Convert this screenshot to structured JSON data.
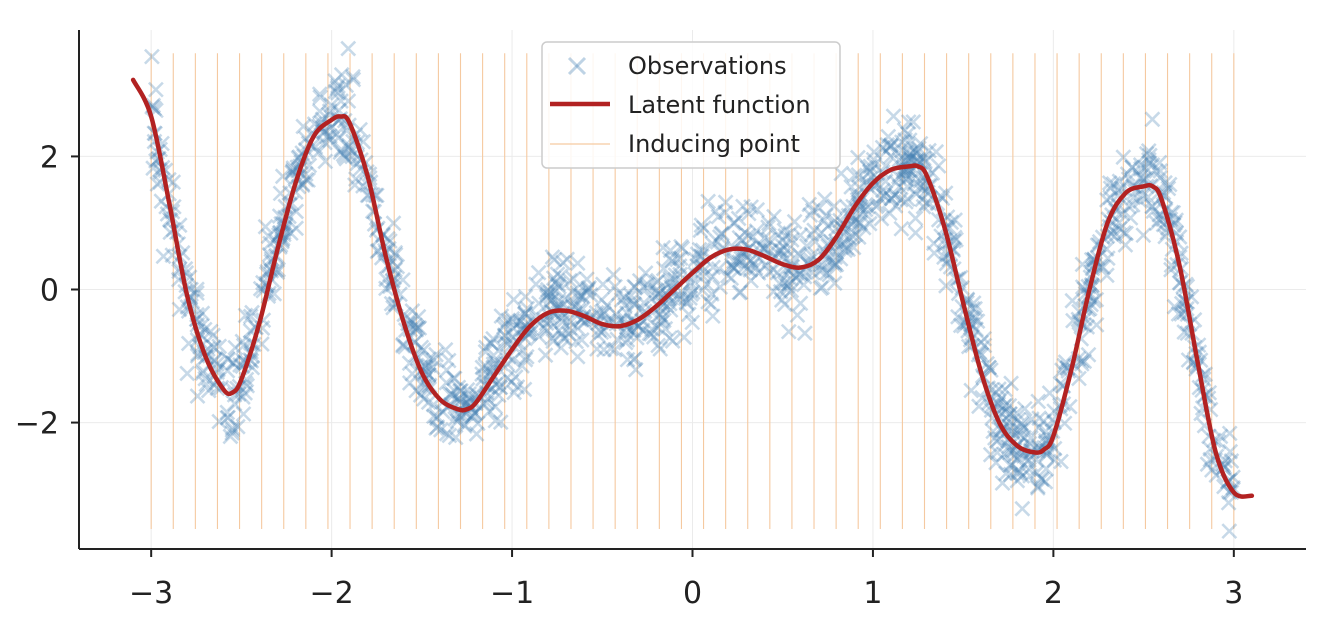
{
  "chart_data": {
    "type": "scatter",
    "title": "",
    "xlabel": "",
    "ylabel": "",
    "xlim": [
      -3.4,
      3.4
    ],
    "ylim": [
      -3.9,
      3.9
    ],
    "xticks": [
      -3,
      -2,
      -1,
      0,
      1,
      2,
      3
    ],
    "xtick_labels": [
      "−3",
      "−2",
      "−1",
      "0",
      "1",
      "2",
      "3"
    ],
    "yticks": [
      -2,
      0,
      2
    ],
    "ytick_labels": [
      "−2",
      "0",
      "2"
    ],
    "grid": true,
    "legend_position": "top-center",
    "series": [
      {
        "name": "Observations",
        "kind": "scatter",
        "marker": "x",
        "color": "#4682b4",
        "x_range": [
          -3.0,
          3.0
        ],
        "n_points": 1500,
        "noise_sd": 0.35
      },
      {
        "name": "Latent function",
        "kind": "line",
        "color": "#b22222",
        "x": [
          -3.1,
          -3.0,
          -2.9,
          -2.8,
          -2.7,
          -2.6,
          -2.55,
          -2.5,
          -2.4,
          -2.3,
          -2.2,
          -2.1,
          -2.0,
          -1.95,
          -1.9,
          -1.8,
          -1.7,
          -1.6,
          -1.5,
          -1.4,
          -1.3,
          -1.25,
          -1.2,
          -1.1,
          -1.0,
          -0.9,
          -0.8,
          -0.7,
          -0.6,
          -0.5,
          -0.4,
          -0.3,
          -0.2,
          -0.1,
          0.0,
          0.1,
          0.2,
          0.3,
          0.4,
          0.5,
          0.6,
          0.7,
          0.8,
          0.9,
          1.0,
          1.1,
          1.2,
          1.25,
          1.3,
          1.4,
          1.5,
          1.6,
          1.7,
          1.8,
          1.9,
          1.95,
          2.0,
          2.1,
          2.2,
          2.3,
          2.4,
          2.5,
          2.55,
          2.6,
          2.7,
          2.8,
          2.9,
          3.0,
          3.1
        ],
        "y": [
          3.15,
          2.6,
          1.3,
          -0.1,
          -1.0,
          -1.5,
          -1.55,
          -1.35,
          -0.5,
          0.6,
          1.6,
          2.3,
          2.55,
          2.6,
          2.5,
          1.7,
          0.5,
          -0.5,
          -1.25,
          -1.65,
          -1.8,
          -1.8,
          -1.7,
          -1.3,
          -0.9,
          -0.55,
          -0.35,
          -0.32,
          -0.4,
          -0.52,
          -0.55,
          -0.45,
          -0.25,
          0.0,
          0.25,
          0.48,
          0.6,
          0.6,
          0.5,
          0.38,
          0.33,
          0.45,
          0.8,
          1.25,
          1.6,
          1.8,
          1.85,
          1.85,
          1.7,
          0.9,
          -0.2,
          -1.25,
          -2.0,
          -2.35,
          -2.45,
          -2.4,
          -2.2,
          -1.2,
          0.0,
          1.0,
          1.45,
          1.55,
          1.55,
          1.35,
          0.35,
          -1.1,
          -2.45,
          -3.05,
          -3.1
        ]
      },
      {
        "name": "Inducing point",
        "kind": "vlines",
        "color": "#f5c9a0",
        "x_start": -3.0,
        "x_end": 3.0,
        "count": 50,
        "y_range": [
          -3.6,
          3.55
        ]
      }
    ]
  },
  "legend": {
    "observations": "Observations",
    "latent": "Latent function",
    "inducing": "Inducing point"
  }
}
